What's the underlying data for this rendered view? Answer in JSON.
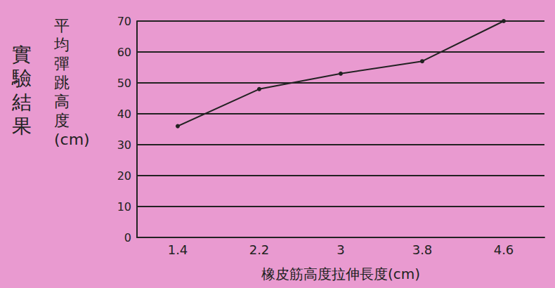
{
  "chart_data": {
    "type": "line",
    "title": "實驗結果",
    "x_label": "橡皮筋高度拉伸長度(cm)",
    "y_label": "平均彈跳高度(cm)",
    "categories": [
      "1.4",
      "2.2",
      "3",
      "3.8",
      "4.6"
    ],
    "values": [
      36,
      48,
      53,
      57,
      70
    ],
    "color": "#222222",
    "marker": "circle",
    "ylim": [
      0,
      70
    ],
    "yticks": [
      0,
      10,
      20,
      30,
      40,
      50,
      60,
      70
    ],
    "grid": true
  }
}
